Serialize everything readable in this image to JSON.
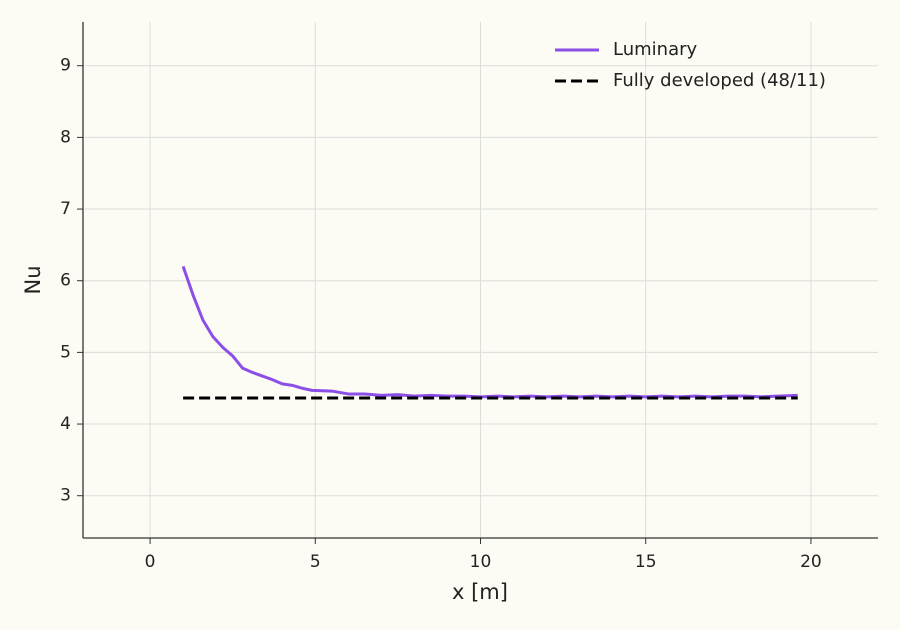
{
  "chart_data": {
    "type": "line",
    "xlabel": "x [m]",
    "ylabel": "Nu",
    "xlim": [
      -2.03,
      22.03
    ],
    "ylim": [
      2.41,
      9.61
    ],
    "xticks": [
      0,
      5,
      10,
      15,
      20
    ],
    "yticks": [
      3,
      4,
      5,
      6,
      7,
      8,
      9
    ],
    "grid": true,
    "legend": "upper right",
    "series": [
      {
        "name": "Luminary",
        "color": "#8b4fe8",
        "style": "solid",
        "x": [
          1.0,
          1.3,
          1.6,
          1.9,
          2.2,
          2.5,
          2.8,
          3.1,
          3.4,
          3.7,
          4.0,
          4.3,
          4.6,
          4.9,
          5.5,
          6.0,
          6.5,
          7.0,
          7.5,
          8.0,
          8.5,
          9.0,
          9.5,
          10.0,
          10.5,
          11.0,
          11.5,
          12.0,
          12.5,
          13.0,
          13.5,
          14.0,
          14.5,
          15.0,
          15.5,
          16.0,
          16.5,
          17.0,
          17.5,
          18.0,
          18.5,
          19.0,
          19.6
        ],
        "values": [
          6.2,
          5.8,
          5.45,
          5.22,
          5.07,
          4.95,
          4.78,
          4.72,
          4.67,
          4.62,
          4.56,
          4.54,
          4.5,
          4.47,
          4.46,
          4.42,
          4.42,
          4.4,
          4.41,
          4.39,
          4.4,
          4.39,
          4.39,
          4.38,
          4.39,
          4.38,
          4.39,
          4.38,
          4.39,
          4.38,
          4.39,
          4.38,
          4.39,
          4.38,
          4.39,
          4.38,
          4.39,
          4.38,
          4.39,
          4.39,
          4.38,
          4.39,
          4.4
        ]
      },
      {
        "name": "Fully developed (48/11)",
        "color": "#000000",
        "style": "dashed",
        "x": [
          1.0,
          19.6
        ],
        "values": [
          4.3636,
          4.3636
        ]
      }
    ]
  }
}
